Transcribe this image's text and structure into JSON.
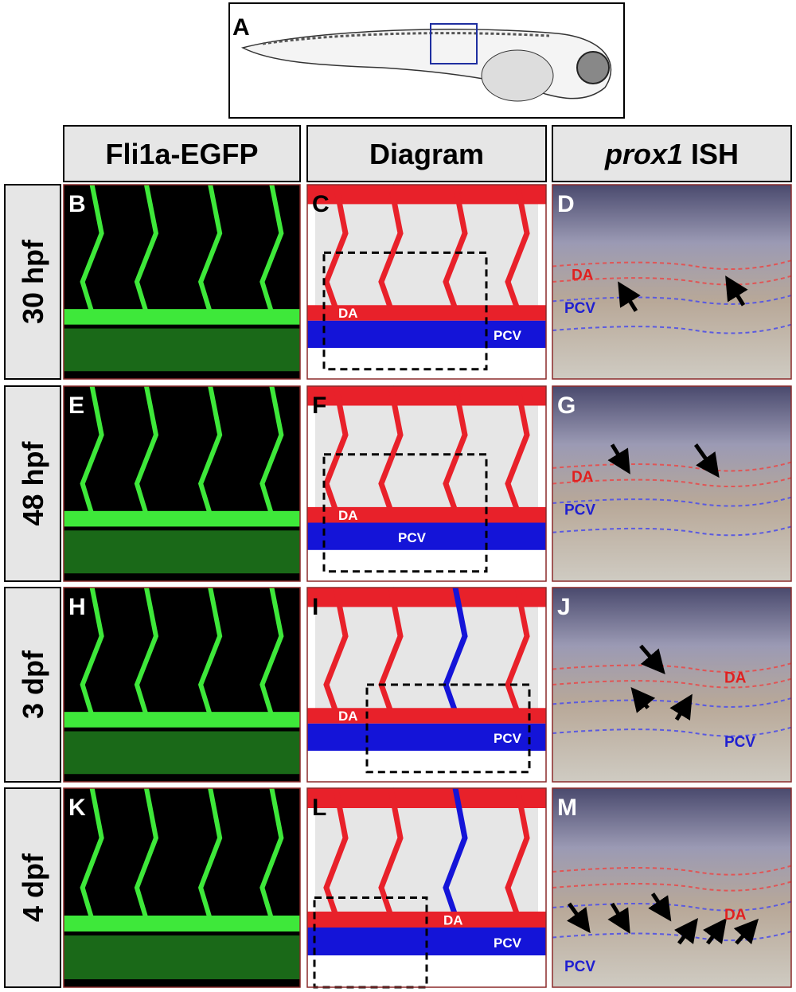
{
  "panel_a": {
    "letter": "A"
  },
  "headers": [
    {
      "text": "Fli1a-EGFP"
    },
    {
      "text": "Diagram"
    },
    {
      "italic": "prox1",
      "text": "ISH"
    }
  ],
  "rows": [
    {
      "label": "30 hpf",
      "letters": [
        "B",
        "C",
        "D"
      ],
      "diagram_labels": [
        "DA",
        "PCV"
      ],
      "ish_labels": [
        "DA",
        "PCV"
      ]
    },
    {
      "label": "48 hpf",
      "letters": [
        "E",
        "F",
        "G"
      ],
      "diagram_labels": [
        "DA",
        "PCV"
      ],
      "ish_labels": [
        "DA",
        "PCV"
      ]
    },
    {
      "label": "3 dpf",
      "letters": [
        "H",
        "I",
        "J"
      ],
      "diagram_labels": [
        "DA",
        "PCV"
      ],
      "ish_labels": [
        "DA",
        "PCV"
      ]
    },
    {
      "label": "4 dpf",
      "letters": [
        "K",
        "L",
        "M"
      ],
      "diagram_labels": [
        "DA",
        "PCV"
      ],
      "ish_labels": [
        "DA",
        "PCV"
      ]
    }
  ]
}
